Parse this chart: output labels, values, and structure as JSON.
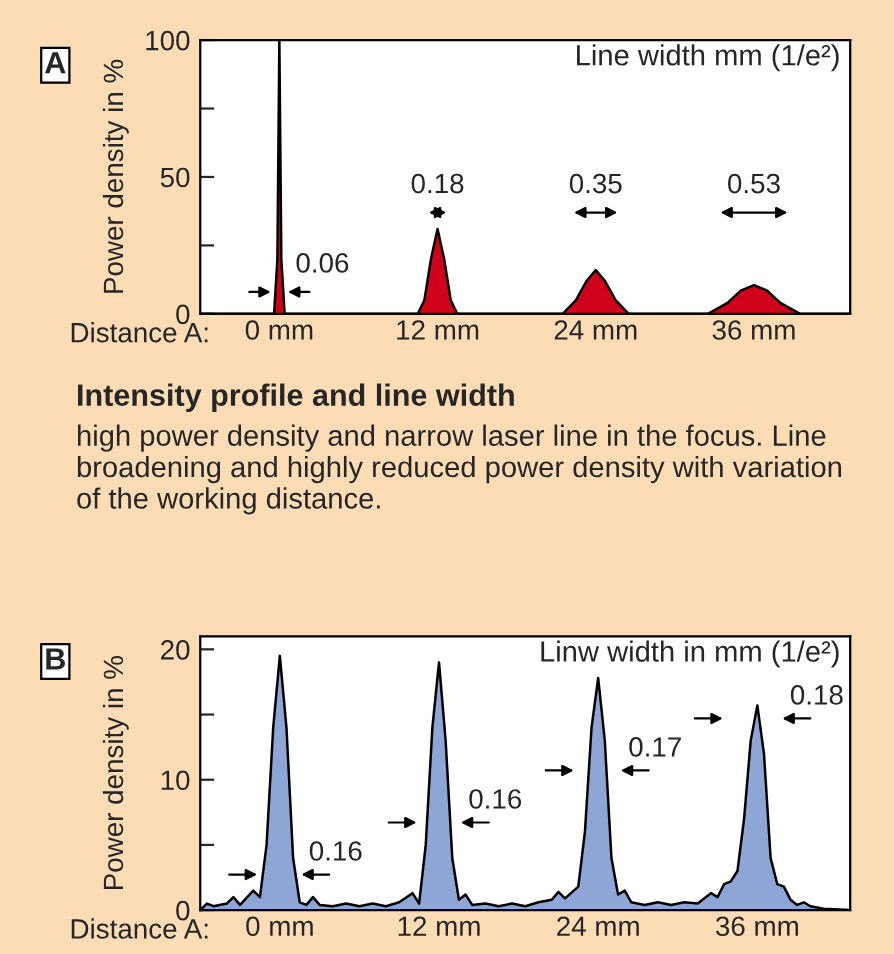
{
  "chart_data": [
    {
      "type": "area",
      "title": "A",
      "xlabel": "Distance A:",
      "ylabel": "Power density in %",
      "x": [
        -6,
        -0.4,
        -0.15,
        0,
        0.15,
        0.4,
        10.5,
        11,
        11.5,
        12,
        12.5,
        13,
        13.5,
        21.5,
        22.5,
        23.3,
        24,
        24.7,
        25.5,
        26.5,
        32.5,
        34,
        35,
        36,
        37,
        38,
        39.5,
        43.3
      ],
      "series": [
        {
          "color": "#d0021b",
          "values": [
            0,
            0,
            20,
            100,
            20,
            0,
            0,
            5,
            20,
            31,
            20,
            5,
            0,
            0,
            5,
            12,
            16,
            12,
            5,
            0,
            0,
            4,
            8.5,
            10.5,
            8.5,
            4,
            0,
            0
          ]
        }
      ],
      "xlim": [
        -6,
        43.3
      ],
      "xticks": [
        {
          "value": 0,
          "label": "0 mm"
        },
        {
          "value": 12,
          "label": "12 mm"
        },
        {
          "value": 24,
          "label": "24 mm"
        },
        {
          "value": 36,
          "label": "36 mm"
        }
      ],
      "ylim": [
        0,
        100
      ],
      "yticks": [
        0,
        {
          "value": 25,
          "label": null
        },
        50,
        {
          "value": 75,
          "label": null
        },
        100
      ],
      "annotations": [
        "Line width mm (1/e²)",
        "0.06",
        "0.18",
        "0.35",
        "0.53"
      ]
    },
    {
      "type": "area",
      "title": "B",
      "subtitle": "Intensity profile and line width",
      "xlabel": "Distance A:",
      "ylabel": "Power density in %",
      "x": [
        -6,
        -5.5,
        -5,
        -4,
        -3.5,
        -3,
        -2,
        -1.5,
        -1,
        -0.5,
        0,
        0.5,
        1,
        1.5,
        2,
        2.5,
        3,
        4,
        5,
        6,
        7,
        8,
        9,
        10,
        10.5,
        11,
        11.5,
        12,
        12.5,
        13,
        13.5,
        14,
        14.5,
        15.5,
        16.5,
        17.5,
        18.5,
        19.5,
        20.5,
        21,
        21.5,
        22.5,
        23,
        23.5,
        24,
        24.5,
        25,
        25.5,
        26,
        26.5,
        27.5,
        28.5,
        29.5,
        30.5,
        31.5,
        32.5,
        33,
        33.5,
        34,
        34.5,
        35,
        35.5,
        36,
        36.5,
        37,
        37.5,
        38,
        38.5,
        39,
        39.5,
        40,
        41,
        43
      ],
      "series": [
        {
          "color": "#8ea6d6",
          "values": [
            0,
            0.5,
            0.3,
            0.5,
            1,
            0.4,
            1.5,
            1,
            5,
            14,
            19.5,
            14,
            4,
            0.6,
            0.4,
            1,
            0.4,
            0.3,
            0.5,
            0.3,
            0.5,
            0.3,
            0.6,
            1.3,
            0.5,
            5,
            14,
            19,
            13,
            4,
            0.8,
            1.2,
            0.4,
            0.5,
            0.3,
            0.5,
            0.3,
            0.6,
            0.8,
            1.4,
            0.9,
            1.8,
            6,
            14,
            17.8,
            13,
            4,
            1.2,
            1.5,
            0.6,
            0.4,
            0.6,
            0.4,
            0.6,
            0.5,
            1.3,
            1,
            2,
            2.2,
            3,
            7,
            13,
            15.7,
            12,
            4,
            2,
            1.8,
            0.8,
            0.4,
            0.6,
            0.3,
            0.1,
            0
          ]
        }
      ],
      "xlim": [
        -6,
        43
      ],
      "xticks": [
        {
          "value": 0,
          "label": "0 mm"
        },
        {
          "value": 12,
          "label": "12 mm"
        },
        {
          "value": 24,
          "label": "24 mm"
        },
        {
          "value": 36,
          "label": "36 mm"
        }
      ],
      "ylim": [
        0,
        21
      ],
      "yticks": [
        0,
        {
          "value": 5,
          "label": null
        },
        10,
        {
          "value": 15,
          "label": null
        },
        20
      ],
      "annotations": [
        "Linw width in mm (1/e²)",
        "high power density and narrow laser line in the focus. Line broadening and highly reduced power density with variation of the working distance.",
        "0.16",
        "0.16",
        "0.17",
        "0.18"
      ]
    }
  ]
}
